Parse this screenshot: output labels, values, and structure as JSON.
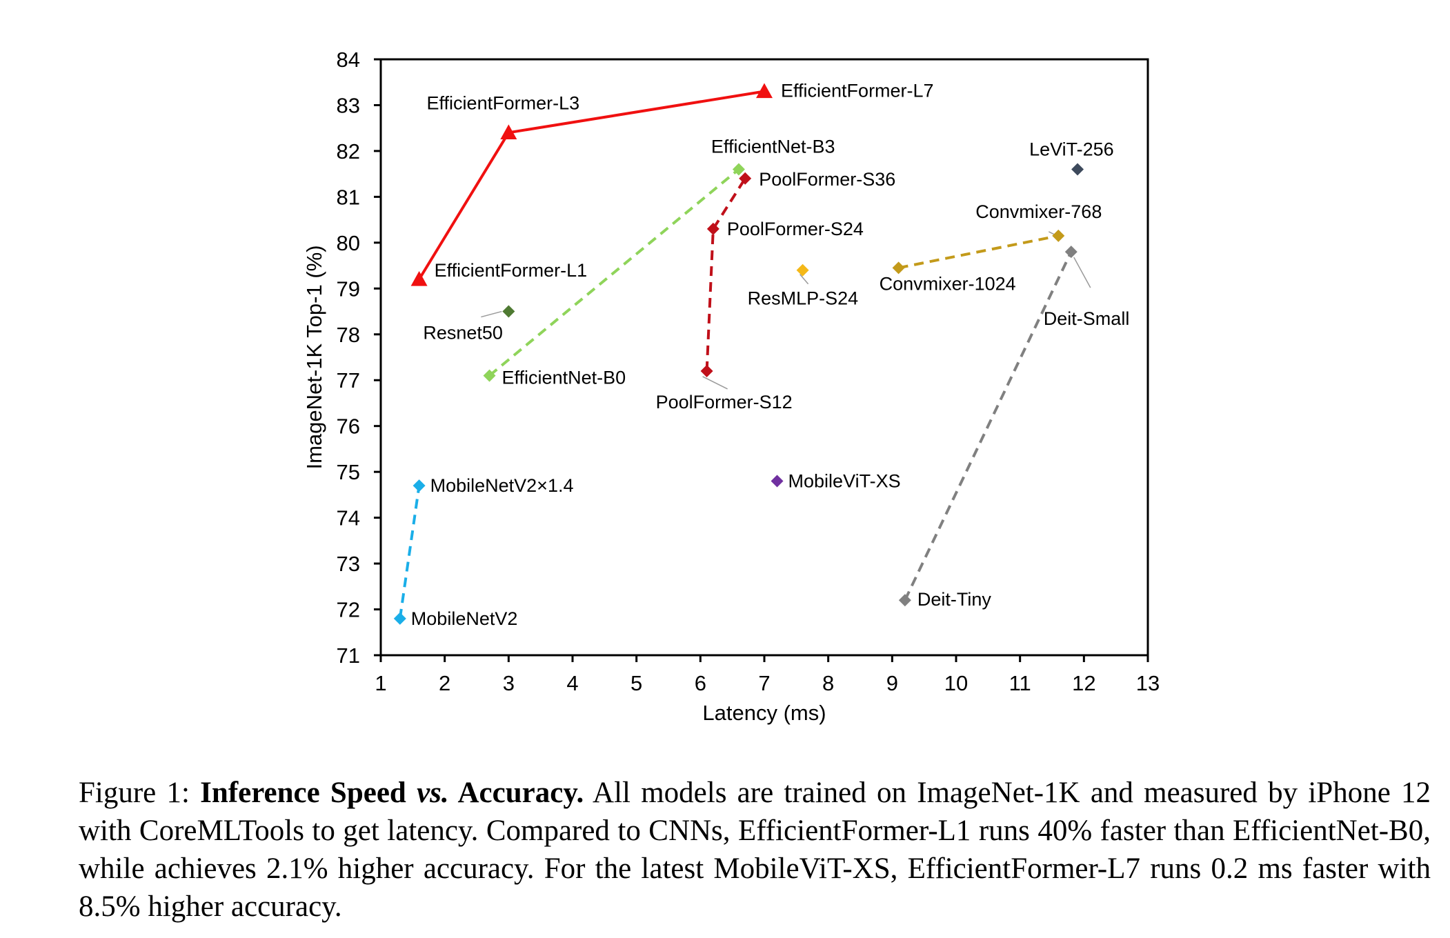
{
  "chart_data": {
    "type": "scatter",
    "xlabel": "Latency (ms)",
    "ylabel": "ImageNet-1K Top-1 (%)",
    "xlim": [
      1,
      13
    ],
    "ylim": [
      71,
      84
    ],
    "xticks": [
      "1",
      "2",
      "3",
      "4",
      "5",
      "6",
      "7",
      "8",
      "9",
      "10",
      "11",
      "12",
      "13"
    ],
    "yticks": [
      "71",
      "72",
      "73",
      "74",
      "75",
      "76",
      "77",
      "78",
      "79",
      "80",
      "81",
      "82",
      "83",
      "84"
    ],
    "grid": false,
    "series": [
      {
        "color": "#f01010",
        "marker": "triangle",
        "line": "solid",
        "points": [
          {
            "name": "EfficientFormer-L1",
            "x": 1.6,
            "y": 79.2
          },
          {
            "name": "EfficientFormer-L3",
            "x": 3.0,
            "y": 82.4
          },
          {
            "name": "EfficientFormer-L7",
            "x": 7.0,
            "y": 83.3
          }
        ]
      },
      {
        "color": "#8fd45a",
        "marker": "diamond",
        "line": "dashed",
        "points": [
          {
            "name": "EfficientNet-B0",
            "x": 2.7,
            "y": 77.1
          },
          {
            "name": "EfficientNet-B3",
            "x": 6.6,
            "y": 81.6
          }
        ]
      },
      {
        "color": "#c0101a",
        "marker": "diamond",
        "line": "dashed",
        "points": [
          {
            "name": "PoolFormer-S12",
            "x": 6.1,
            "y": 77.2
          },
          {
            "name": "PoolFormer-S24",
            "x": 6.2,
            "y": 80.3
          },
          {
            "name": "PoolFormer-S36",
            "x": 6.7,
            "y": 81.4
          }
        ]
      },
      {
        "color": "#c39a1a",
        "marker": "diamond",
        "line": "dashed",
        "points": [
          {
            "name": "Convmixer-1024",
            "x": 9.1,
            "y": 79.45
          },
          {
            "name": "Convmixer-768",
            "x": 11.6,
            "y": 80.15
          }
        ]
      },
      {
        "color": "#808080",
        "marker": "diamond",
        "line": "dashed",
        "points": [
          {
            "name": "Deit-Tiny",
            "x": 9.2,
            "y": 72.2
          },
          {
            "name": "Deit-Small",
            "x": 11.8,
            "y": 79.8
          }
        ]
      },
      {
        "color": "#1aaee8",
        "marker": "diamond",
        "line": "dashed",
        "points": [
          {
            "name": "MobileNetV2",
            "x": 1.3,
            "y": 71.8
          },
          {
            "name": "MobileNetV2×1.4",
            "x": 1.6,
            "y": 74.7
          }
        ]
      },
      {
        "color": "#4f7a32",
        "marker": "diamond",
        "line": "none",
        "points": [
          {
            "name": "Resnet50",
            "x": 3.0,
            "y": 78.5
          }
        ]
      },
      {
        "color": "#3d4a5c",
        "marker": "diamond",
        "line": "none",
        "points": [
          {
            "name": "LeViT-256",
            "x": 11.9,
            "y": 81.6
          }
        ]
      },
      {
        "color": "#f4b818",
        "marker": "diamond",
        "line": "none",
        "points": [
          {
            "name": "ResMLP-S24",
            "x": 7.6,
            "y": 79.4
          }
        ]
      },
      {
        "color": "#7030a0",
        "marker": "diamond",
        "line": "none",
        "points": [
          {
            "name": "MobileViT-XS",
            "x": 7.2,
            "y": 74.8
          }
        ]
      }
    ]
  },
  "caption": {
    "prefix": "Figure 1: ",
    "bold1": "Inference Speed ",
    "bold_italic": "vs.",
    "bold2": " Accuracy.",
    "text": " All models are trained on ImageNet-1K and measured by iPhone 12 with CoreMLTools to get latency. Compared to CNNs, EfficientFormer-L1 runs 40% faster than EfficientNet-B0, while achieves 2.1% higher accuracy. For the latest MobileViT-XS, EfficientFormer-L7 runs 0.2 ms faster with 8.5% higher accuracy."
  }
}
